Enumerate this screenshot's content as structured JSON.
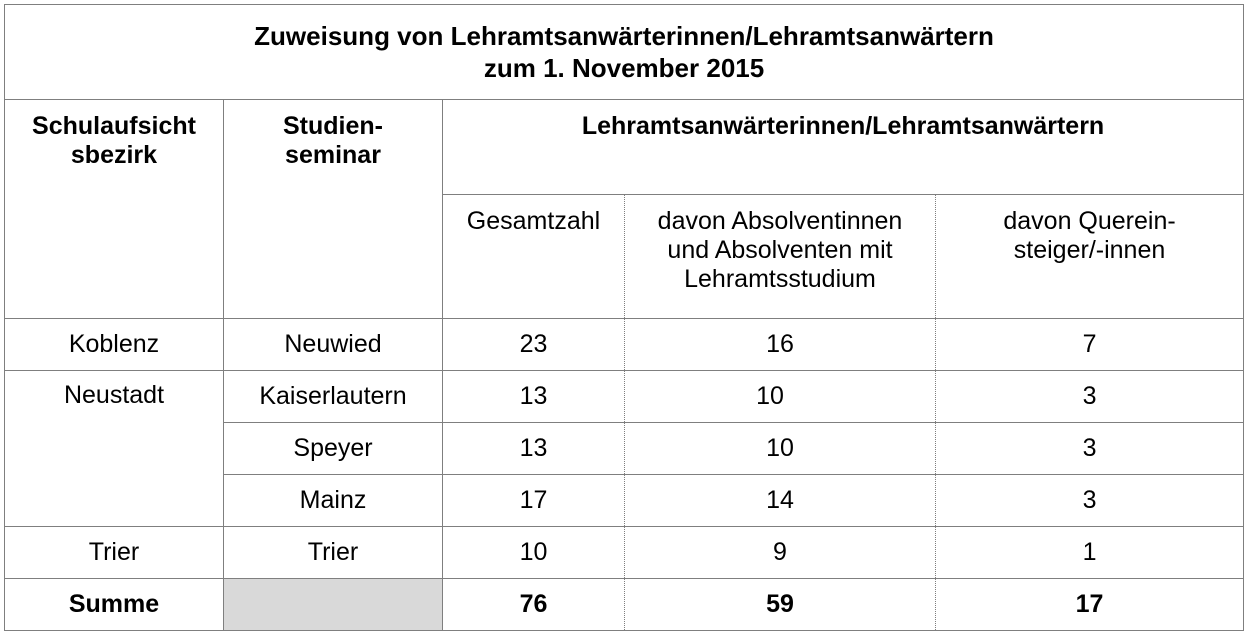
{
  "title": {
    "line1": "Zuweisung von Lehramtsanwärterinnen/Lehramtsanwärtern",
    "line2": "zum 1. November 2015"
  },
  "headers": {
    "bezirk": [
      "Schulaufsicht",
      "sbezirk"
    ],
    "seminar": [
      "Studien-",
      "seminar"
    ],
    "group": "Lehramtsanwärterinnen/Lehramtsanwärtern",
    "gesamt": "Gesamtzahl",
    "absolventen": [
      "davon Absolventinnen",
      "und Absolventen mit",
      "Lehramtsstudium"
    ],
    "quereinsteiger": [
      "davon Querein-",
      "steiger/-innen"
    ]
  },
  "rows": [
    {
      "bezirk": "Koblenz",
      "seminar": "Neuwied",
      "gesamt": "23",
      "absolventen": "16",
      "quereinsteiger": "7"
    },
    {
      "bezirk": "Neustadt",
      "seminar": "Kaiserlautern",
      "gesamt": "13",
      "absolventen": "10",
      "quereinsteiger": "3"
    },
    {
      "bezirk": "",
      "seminar": "Speyer",
      "gesamt": "13",
      "absolventen": "10",
      "quereinsteiger": "3"
    },
    {
      "bezirk": "",
      "seminar": "Mainz",
      "gesamt": "17",
      "absolventen": "14",
      "quereinsteiger": "3"
    },
    {
      "bezirk": "Trier",
      "seminar": "Trier",
      "gesamt": "10",
      "absolventen": "9",
      "quereinsteiger": "1"
    }
  ],
  "sum": {
    "label": "Summe",
    "gesamt": "76",
    "absolventen": "59",
    "quereinsteiger": "17"
  },
  "colors": {
    "border": "#7f7f7f",
    "grey_cell": "#d9d9d9"
  }
}
